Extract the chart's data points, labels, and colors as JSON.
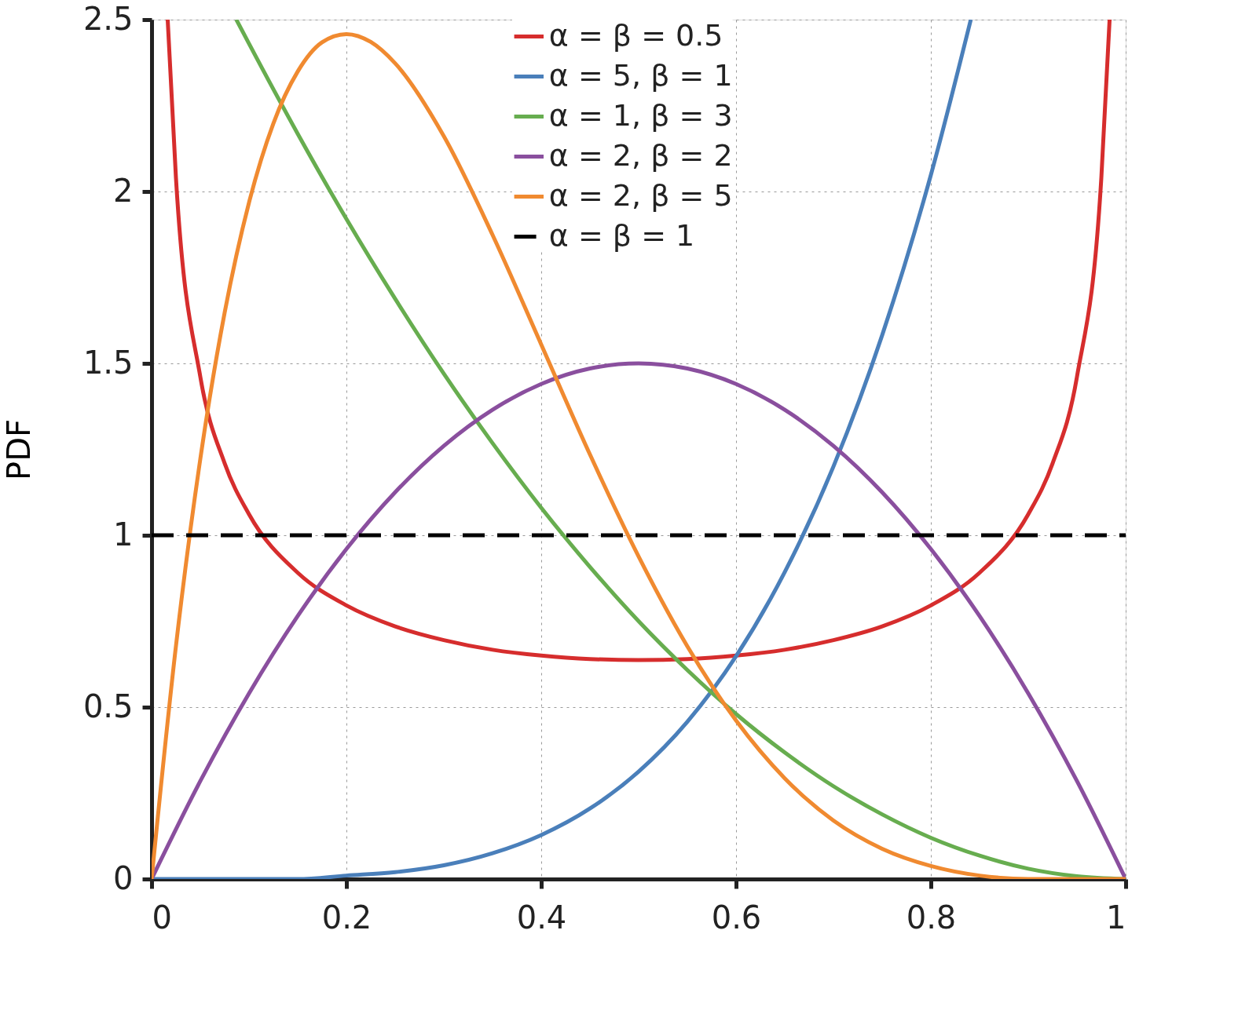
{
  "chart_data": {
    "type": "line",
    "ylabel": "PDF",
    "xlim": [
      0,
      1
    ],
    "ylim": [
      0,
      2.5
    ],
    "xticks": [
      0,
      0.2,
      0.4,
      0.6,
      0.8,
      1
    ],
    "yticks": [
      0,
      0.5,
      1,
      1.5,
      2,
      2.5
    ],
    "grid": true,
    "legend": "top right",
    "marker": "none",
    "series": [
      {
        "name": "α = β = 0.5",
        "color": "#d62d2d",
        "line_style": "solid",
        "x": [
          0.0165,
          0.025,
          0.05,
          0.075,
          0.1,
          0.15,
          0.2,
          0.25,
          0.3,
          0.35,
          0.4,
          0.45,
          0.5,
          0.55,
          0.6,
          0.65,
          0.7,
          0.75,
          0.8,
          0.85,
          0.9,
          0.925,
          0.95,
          0.975,
          0.9835
        ],
        "values": [
          2.5,
          2.039,
          1.461,
          1.209,
          1.061,
          0.891,
          0.796,
          0.735,
          0.695,
          0.667,
          0.65,
          0.64,
          0.637,
          0.64,
          0.65,
          0.667,
          0.695,
          0.735,
          0.796,
          0.891,
          1.061,
          1.209,
          1.461,
          2.039,
          2.5
        ]
      },
      {
        "name": "α = 5, β = 1",
        "color": "#4a7fba",
        "line_style": "solid",
        "x": [
          0,
          0.1,
          0.15,
          0.2,
          0.25,
          0.3,
          0.35,
          0.4,
          0.45,
          0.5,
          0.55,
          0.6,
          0.65,
          0.7,
          0.75,
          0.8,
          0.841
        ],
        "values": [
          0,
          0,
          0,
          0.01,
          0.02,
          0.04,
          0.075,
          0.128,
          0.205,
          0.3125,
          0.4575,
          0.648,
          0.893,
          1.2,
          1.582,
          2.048,
          2.5
        ]
      },
      {
        "name": "α = 1, β = 3",
        "color": "#67ad4f",
        "line_style": "solid",
        "x": [
          0.087,
          0.1,
          0.15,
          0.2,
          0.25,
          0.3,
          0.35,
          0.4,
          0.45,
          0.5,
          0.55,
          0.6,
          0.65,
          0.7,
          0.75,
          0.8,
          0.85,
          0.9,
          0.95,
          1
        ],
        "values": [
          2.5,
          2.43,
          2.168,
          1.92,
          1.688,
          1.47,
          1.268,
          1.08,
          0.908,
          0.75,
          0.608,
          0.48,
          0.368,
          0.27,
          0.188,
          0.12,
          0.068,
          0.03,
          0.008,
          0
        ]
      },
      {
        "name": "α = 2, β = 2",
        "color": "#8a4f9e",
        "line_style": "solid",
        "x": [
          0,
          0.05,
          0.1,
          0.15,
          0.2,
          0.25,
          0.3,
          0.35,
          0.4,
          0.45,
          0.5,
          0.55,
          0.6,
          0.65,
          0.7,
          0.75,
          0.8,
          0.85,
          0.9,
          0.95,
          1
        ],
        "values": [
          0,
          0.285,
          0.54,
          0.765,
          0.96,
          1.125,
          1.26,
          1.365,
          1.44,
          1.485,
          1.5,
          1.485,
          1.44,
          1.365,
          1.26,
          1.125,
          0.96,
          0.765,
          0.54,
          0.285,
          0
        ]
      },
      {
        "name": "α = 2, β = 5",
        "color": "#f08a30",
        "line_style": "solid",
        "x": [
          0,
          0.025,
          0.05,
          0.075,
          0.1,
          0.125,
          0.15,
          0.175,
          0.2,
          0.225,
          0.25,
          0.3,
          0.35,
          0.4,
          0.45,
          0.5,
          0.55,
          0.6,
          0.65,
          0.7,
          0.75,
          0.8,
          0.85,
          0.9,
          0.95,
          1
        ],
        "values": [
          0,
          0.678,
          1.222,
          1.648,
          1.968,
          2.198,
          2.349,
          2.434,
          2.458,
          2.435,
          2.373,
          2.161,
          1.874,
          1.555,
          1.235,
          0.938,
          0.677,
          0.461,
          0.293,
          0.17,
          0.088,
          0.038,
          0.01,
          0,
          0,
          0
        ]
      },
      {
        "name": "α = β = 1",
        "color": "#000000",
        "line_style": "dashed",
        "x": [
          0,
          1
        ],
        "values": [
          1,
          1
        ]
      }
    ]
  }
}
